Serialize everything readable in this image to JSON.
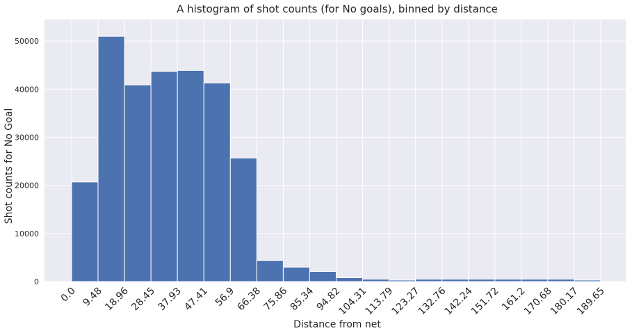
{
  "chart_data": {
    "type": "bar",
    "title": "A histogram of shot counts (for No goals), binned by distance",
    "xlabel": "Distance from net",
    "ylabel": "Shot counts for No Goal",
    "x_ticks": [
      "0.0",
      "9.48",
      "18.96",
      "28.45",
      "37.93",
      "47.41",
      "56.9",
      "66.38",
      "75.86",
      "85.34",
      "94.82",
      "104.31",
      "113.79",
      "123.27",
      "132.76",
      "142.24",
      "151.72",
      "161.2",
      "170.68",
      "180.17",
      "189.65"
    ],
    "bin_edges": [
      0.0,
      9.48,
      18.96,
      28.45,
      37.93,
      47.41,
      56.9,
      66.38,
      75.86,
      85.34,
      94.82,
      104.31,
      113.79,
      123.27,
      132.76,
      142.24,
      151.72,
      161.2,
      170.68,
      180.17,
      189.65
    ],
    "values": [
      20700,
      51000,
      40900,
      43700,
      43900,
      41300,
      25700,
      4400,
      3000,
      2100,
      800,
      500,
      300,
      500,
      500,
      500,
      500,
      500,
      500,
      300
    ],
    "y_ticks": [
      0,
      10000,
      20000,
      30000,
      40000,
      50000
    ],
    "ylim": [
      0,
      54500
    ],
    "grid": true,
    "colors": {
      "bar": "#4c72b0",
      "background": "#eaeaf2",
      "grid": "#ffffff"
    }
  }
}
